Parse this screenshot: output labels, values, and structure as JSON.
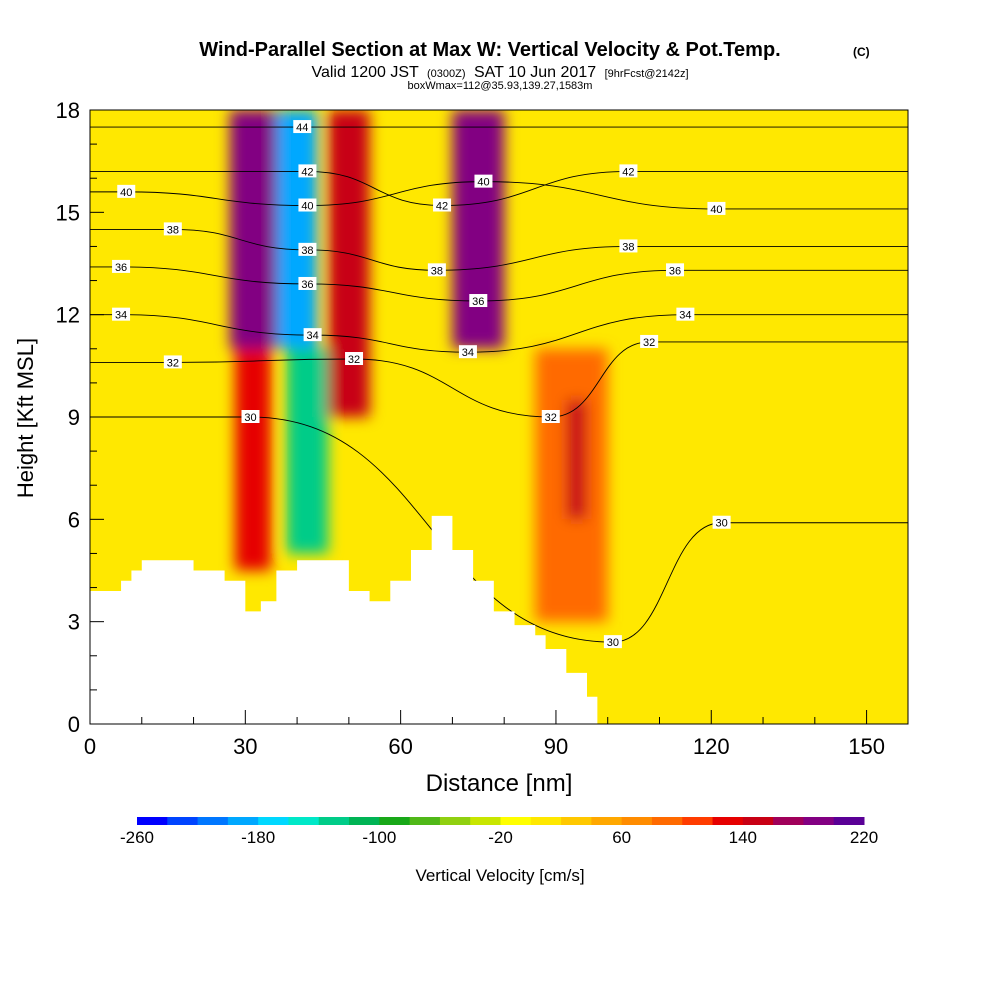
{
  "header": {
    "title": "Wind-Parallel Section at Max W: Vertical Velocity & Pot.Temp.",
    "title_units": "(C)",
    "subtitle_a": "Valid 1200 JST",
    "subtitle_b": "(0300Z)",
    "subtitle_c": "SAT 10 Jun 2017",
    "subtitle_d": "[9hrFcst@2142z]",
    "subtitle_line3": "boxWmax=112@35.93,139.27,1583m"
  },
  "chart_data": {
    "type": "heatmap",
    "title": "Wind-Parallel Section at Max W: Vertical Velocity & Pot.Temp.",
    "xlabel": "Distance [nm]",
    "ylabel": "Height [Kft MSL]",
    "xlim": [
      0,
      158
    ],
    "ylim": [
      0,
      18
    ],
    "x_ticks": [
      0,
      30,
      60,
      90,
      120,
      150
    ],
    "y_ticks": [
      0,
      3,
      6,
      9,
      12,
      15,
      18
    ],
    "colorbar": {
      "label": "Vertical Velocity [cm/s]",
      "tick_values": [
        -260,
        -180,
        -100,
        -20,
        60,
        140,
        220
      ],
      "min": -260,
      "max": 220,
      "step": 20,
      "colors": [
        "#0000ff",
        "#0044ff",
        "#0077ff",
        "#00a8ff",
        "#00d8ff",
        "#00e8c8",
        "#00cc88",
        "#00b455",
        "#18a818",
        "#50b818",
        "#90d010",
        "#c8e600",
        "#ffff00",
        "#ffe800",
        "#ffc800",
        "#ffa800",
        "#ff8c00",
        "#ff6a00",
        "#ff3c00",
        "#e60000",
        "#c80014",
        "#a0005a",
        "#820082",
        "#5a0096"
      ]
    },
    "terrain": {
      "x": [
        0,
        6,
        6,
        8,
        8,
        10,
        10,
        20,
        20,
        26,
        26,
        30,
        30,
        33,
        33,
        36,
        36,
        40,
        40,
        50,
        50,
        54,
        54,
        58,
        58,
        62,
        62,
        66,
        66,
        70,
        70,
        74,
        74,
        78,
        78,
        82,
        82,
        86,
        86,
        88,
        88,
        92,
        92,
        96,
        96,
        98,
        98
      ],
      "y": [
        3.9,
        3.9,
        4.2,
        4.2,
        4.5,
        4.5,
        4.8,
        4.8,
        4.5,
        4.5,
        4.2,
        4.2,
        3.3,
        3.3,
        3.6,
        3.6,
        4.5,
        4.5,
        4.8,
        4.8,
        3.9,
        3.9,
        3.6,
        3.6,
        4.2,
        4.2,
        5.1,
        5.1,
        6.1,
        6.1,
        5.1,
        5.1,
        4.2,
        4.2,
        3.3,
        3.3,
        2.9,
        2.9,
        2.6,
        2.6,
        2.2,
        2.2,
        1.5,
        1.5,
        0.8,
        0.8,
        0.3
      ]
    },
    "velocity_cells": [
      {
        "x": [
          27,
          37
        ],
        "y": [
          11,
          18
        ],
        "value": 180
      },
      {
        "x": [
          28,
          35
        ],
        "y": [
          4.5,
          11
        ],
        "value": 120
      },
      {
        "x": [
          36,
          44
        ],
        "y": [
          11,
          18
        ],
        "value": -200
      },
      {
        "x": [
          38,
          46
        ],
        "y": [
          5,
          11
        ],
        "value": -140
      },
      {
        "x": [
          46,
          54
        ],
        "y": [
          9,
          18
        ],
        "value": 140
      },
      {
        "x": [
          70,
          80
        ],
        "y": [
          11,
          18
        ],
        "value": 180
      },
      {
        "x": [
          86,
          100
        ],
        "y": [
          3,
          11
        ],
        "value": 80
      },
      {
        "x": [
          92,
          96
        ],
        "y": [
          6,
          9.5
        ],
        "value": 140
      }
    ],
    "isentropes": [
      {
        "theta": 30,
        "label_at": [
          31,
          9.0
        ]
      },
      {
        "theta": 30,
        "label_at": [
          122,
          5.9
        ]
      },
      {
        "theta": 30,
        "label_at": [
          101,
          2.4
        ]
      },
      {
        "theta": 32,
        "label_at": [
          16,
          10.6
        ]
      },
      {
        "theta": 32,
        "label_at": [
          51,
          10.7
        ]
      },
      {
        "theta": 32,
        "label_at": [
          89,
          9.0
        ]
      },
      {
        "theta": 32,
        "label_at": [
          108,
          11.2
        ]
      },
      {
        "theta": 34,
        "label_at": [
          6,
          12.0
        ]
      },
      {
        "theta": 34,
        "label_at": [
          43,
          11.4
        ]
      },
      {
        "theta": 34,
        "label_at": [
          73,
          10.9
        ]
      },
      {
        "theta": 34,
        "label_at": [
          115,
          12.0
        ]
      },
      {
        "theta": 36,
        "label_at": [
          6,
          13.4
        ]
      },
      {
        "theta": 36,
        "label_at": [
          42,
          12.9
        ]
      },
      {
        "theta": 36,
        "label_at": [
          75,
          12.4
        ]
      },
      {
        "theta": 36,
        "label_at": [
          113,
          13.3
        ]
      },
      {
        "theta": 38,
        "label_at": [
          16,
          14.5
        ]
      },
      {
        "theta": 38,
        "label_at": [
          42,
          13.9
        ]
      },
      {
        "theta": 38,
        "label_at": [
          67,
          13.3
        ]
      },
      {
        "theta": 38,
        "label_at": [
          104,
          14.0
        ]
      },
      {
        "theta": 40,
        "label_at": [
          7,
          15.6
        ]
      },
      {
        "theta": 40,
        "label_at": [
          42,
          15.2
        ]
      },
      {
        "theta": 40,
        "label_at": [
          76,
          15.9
        ]
      },
      {
        "theta": 40,
        "label_at": [
          121,
          15.1
        ]
      },
      {
        "theta": 42,
        "label_at": [
          42,
          16.2
        ]
      },
      {
        "theta": 42,
        "label_at": [
          68,
          15.2
        ]
      },
      {
        "theta": 42,
        "label_at": [
          104,
          16.2
        ]
      },
      {
        "theta": 44,
        "label_at": [
          41,
          17.5
        ]
      }
    ]
  },
  "colors": {
    "background": "#ffffff",
    "axis": "#000000",
    "contour": "#000000",
    "terrain": "#ffffff"
  }
}
